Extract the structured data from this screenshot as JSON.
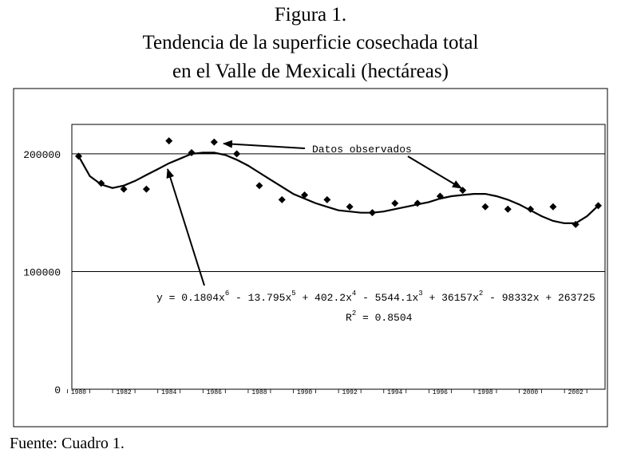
{
  "title_lines": [
    "Figura 1.",
    "Tendencia de la superficie cosechada total",
    "en el Valle de Mexicali (hectáreas)"
  ],
  "source": "Fuente: Cuadro 1.",
  "chart_data": {
    "type": "scatter",
    "grid": "horizontal",
    "ylim": [
      0,
      225000
    ],
    "xlim": [
      1979.7,
      2003.3
    ],
    "y_ticks": [
      {
        "value": 0,
        "label": "0"
      },
      {
        "value": 100000,
        "label": "100000"
      },
      {
        "value": 200000,
        "label": "200000"
      }
    ],
    "x_ticks": [
      {
        "value": 1980,
        "label": "1980"
      },
      {
        "value": 1982,
        "label": "1982"
      },
      {
        "value": 1984,
        "label": "1984"
      },
      {
        "value": 1986,
        "label": "1986"
      },
      {
        "value": 1988,
        "label": "1988"
      },
      {
        "value": 1990,
        "label": "1990"
      },
      {
        "value": 1992,
        "label": "1992"
      },
      {
        "value": 1994,
        "label": "1994"
      },
      {
        "value": 1996,
        "label": "1996"
      },
      {
        "value": 1998,
        "label": "1998"
      },
      {
        "value": 2000,
        "label": "2000"
      },
      {
        "value": 2002,
        "label": "2002"
      }
    ],
    "series": [
      {
        "kind": "observed",
        "marker": "diamond",
        "x": [
          1980,
          1981,
          1982,
          1983,
          1984,
          1985,
          1986,
          1987,
          1988,
          1989,
          1990,
          1991,
          1992,
          1993,
          1994,
          1995,
          1996,
          1997,
          1998,
          1999,
          2000,
          2001,
          2002,
          2003
        ],
        "y": [
          198000,
          175000,
          170000,
          170000,
          211000,
          201000,
          210000,
          200000,
          173000,
          161000,
          165000,
          161000,
          155000,
          150000,
          158000,
          158000,
          164000,
          169000,
          155000,
          153000,
          153000,
          155000,
          140000,
          156000
        ]
      },
      {
        "kind": "trend",
        "x": [
          1980,
          1980.5,
          1981,
          1981.5,
          1982,
          1982.5,
          1983,
          1983.5,
          1984,
          1984.5,
          1985,
          1985.5,
          1986,
          1986.5,
          1987,
          1987.5,
          1988,
          1988.5,
          1989,
          1989.5,
          1990,
          1990.5,
          1991,
          1991.5,
          1992,
          1992.5,
          1993,
          1993.5,
          1994,
          1994.5,
          1995,
          1995.5,
          1996,
          1996.5,
          1997,
          1997.5,
          1998,
          1998.5,
          1999,
          1999.5,
          2000,
          2000.5,
          2001,
          2001.5,
          2002,
          2002.5,
          2003
        ],
        "y": [
          198000,
          181000,
          174000,
          171000,
          173000,
          177000,
          182000,
          187000,
          192000,
          196000,
          200000,
          201000,
          201000,
          199000,
          195000,
          190000,
          184000,
          178000,
          172000,
          166000,
          162000,
          158000,
          155000,
          152000,
          151000,
          150000,
          150000,
          151000,
          153000,
          155000,
          157000,
          159000,
          162000,
          164000,
          165000,
          166000,
          166000,
          164000,
          161000,
          157000,
          152000,
          147000,
          143000,
          141000,
          141000,
          147000,
          156000
        ]
      }
    ],
    "equation": "y = 0.1804x6 - 13.795x5 + 402.2x4 - 5544.1x3 + 36157x2 - 98332x + 263725",
    "r_squared": "R2 = 0.8504",
    "annotation": "Datos observados"
  }
}
